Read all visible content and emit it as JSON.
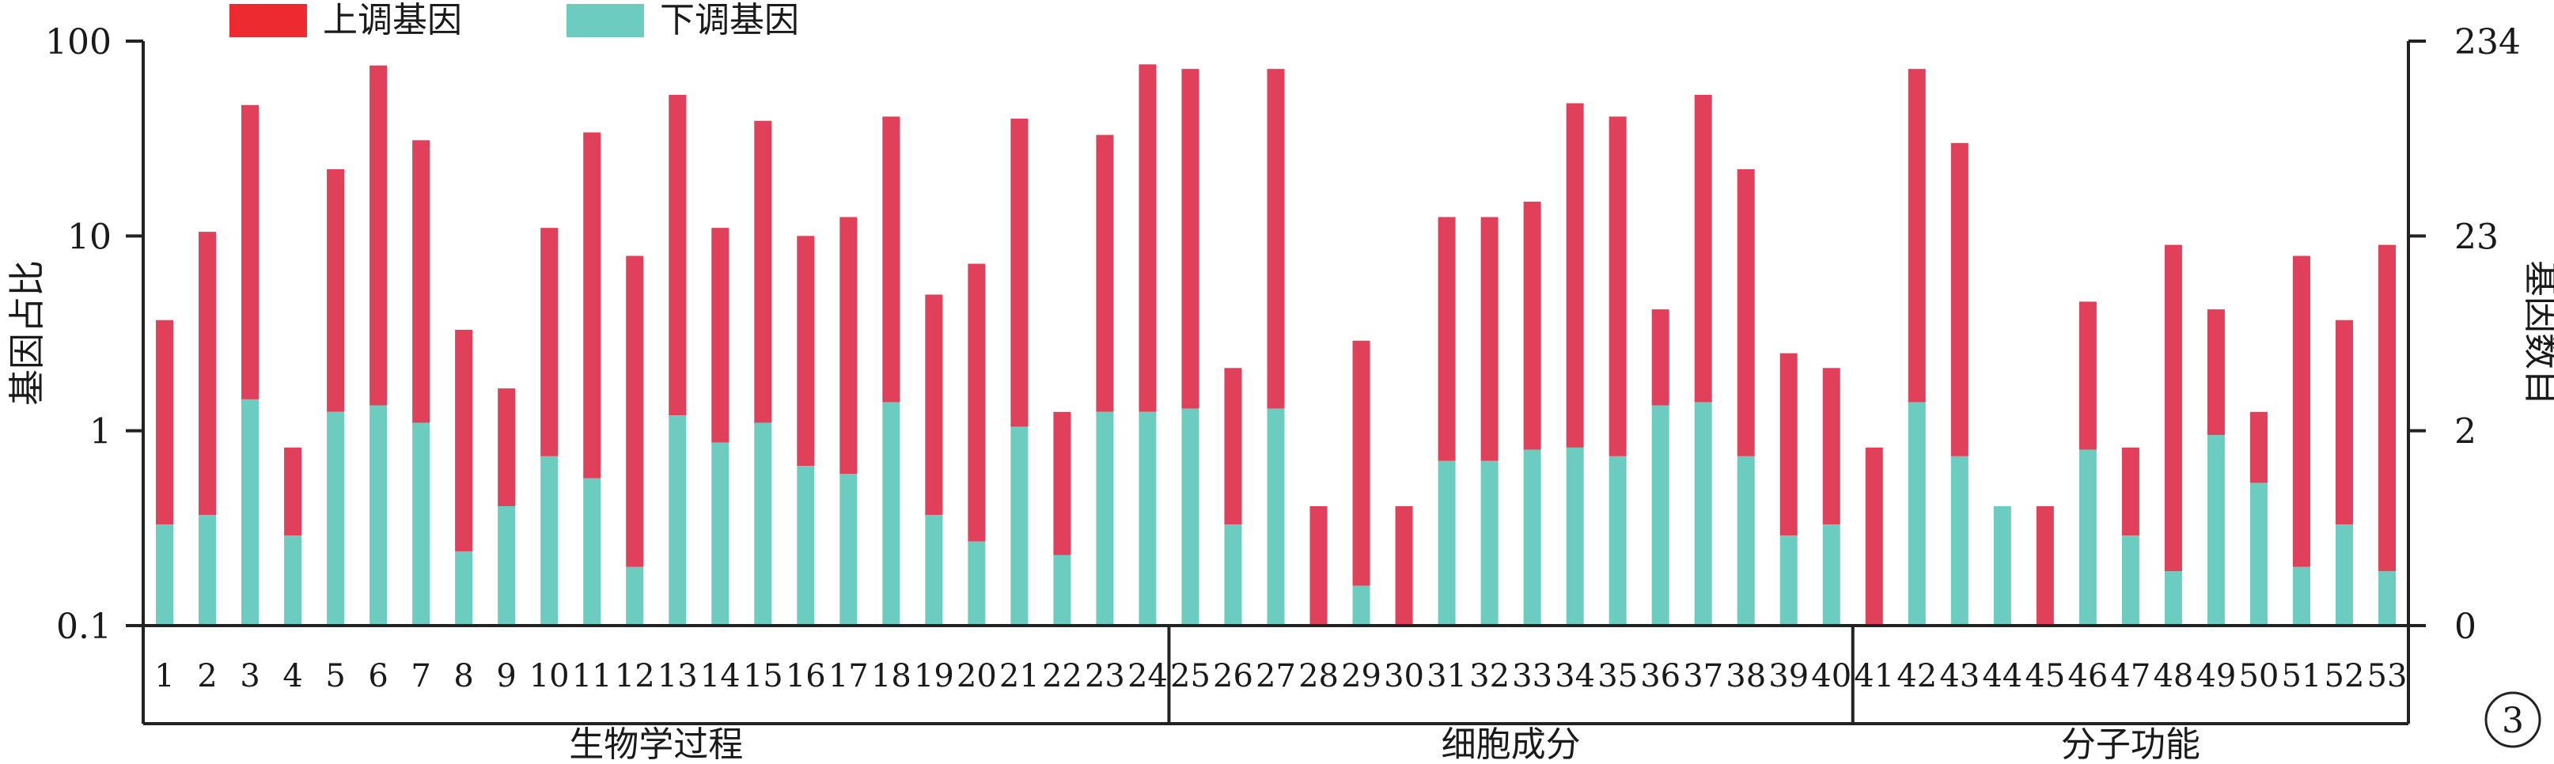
{
  "chart_data": {
    "type": "bar",
    "stacked": true,
    "log_scale_left": true,
    "left_axis": {
      "ylabel": "基因占比",
      "ylim": [
        0.1,
        100
      ],
      "ticks": [
        "0.1",
        "1",
        "10",
        "100"
      ]
    },
    "right_axis": {
      "ylabel": "基因数目",
      "ticks": [
        "0",
        "2",
        "23",
        "234"
      ]
    },
    "legend": {
      "placement": "top-left",
      "entries": [
        "上调基因",
        "下调基因"
      ]
    },
    "series": [
      {
        "name": "上调基因",
        "color": "#e0405a"
      },
      {
        "name": "下调基因",
        "color": "#6cccbf"
      }
    ],
    "categories": [
      "1",
      "2",
      "3",
      "4",
      "5",
      "6",
      "7",
      "8",
      "9",
      "10",
      "11",
      "12",
      "13",
      "14",
      "15",
      "16",
      "17",
      "18",
      "19",
      "20",
      "21",
      "22",
      "23",
      "24",
      "25",
      "26",
      "27",
      "28",
      "29",
      "30",
      "31",
      "32",
      "33",
      "34",
      "35",
      "36",
      "37",
      "38",
      "39",
      "40",
      "41",
      "42",
      "43",
      "44",
      "45",
      "46",
      "47",
      "48",
      "49",
      "50",
      "51",
      "52",
      "53"
    ],
    "total": [
      3.7,
      10.5,
      47,
      0.82,
      22,
      75,
      31,
      3.3,
      1.65,
      11,
      34,
      7.9,
      53,
      11,
      39,
      10,
      12.5,
      41,
      5,
      7.2,
      40,
      1.25,
      33,
      76,
      72,
      2.1,
      72,
      0.41,
      2.9,
      0.41,
      12.5,
      12.5,
      15,
      48,
      41,
      4.2,
      53,
      22,
      2.5,
      2.1,
      0.82,
      72,
      30,
      0.41,
      0.41,
      4.6,
      0.82,
      9,
      4.2,
      1.25,
      7.9,
      3.7,
      9
    ],
    "down": [
      0.33,
      0.37,
      1.45,
      0.29,
      1.25,
      1.35,
      1.1,
      0.24,
      0.41,
      0.74,
      0.57,
      0.2,
      1.2,
      0.87,
      1.1,
      0.66,
      0.6,
      1.4,
      0.37,
      0.27,
      1.05,
      0.23,
      1.25,
      1.25,
      1.3,
      0.33,
      1.3,
      0.1,
      0.16,
      0.1,
      0.7,
      0.7,
      0.8,
      0.82,
      0.74,
      1.35,
      1.4,
      0.74,
      0.29,
      0.33,
      0.1,
      1.4,
      0.74,
      0.41,
      0.1,
      0.8,
      0.29,
      0.19,
      0.95,
      0.54,
      0.2,
      0.33,
      0.19
    ],
    "groups": [
      {
        "label": "生物学过程",
        "from": 1,
        "to": 24
      },
      {
        "label": "细胞成分",
        "from": 25,
        "to": 40
      },
      {
        "label": "分子功能",
        "from": 41,
        "to": 53
      }
    ],
    "panel_label": "3"
  }
}
